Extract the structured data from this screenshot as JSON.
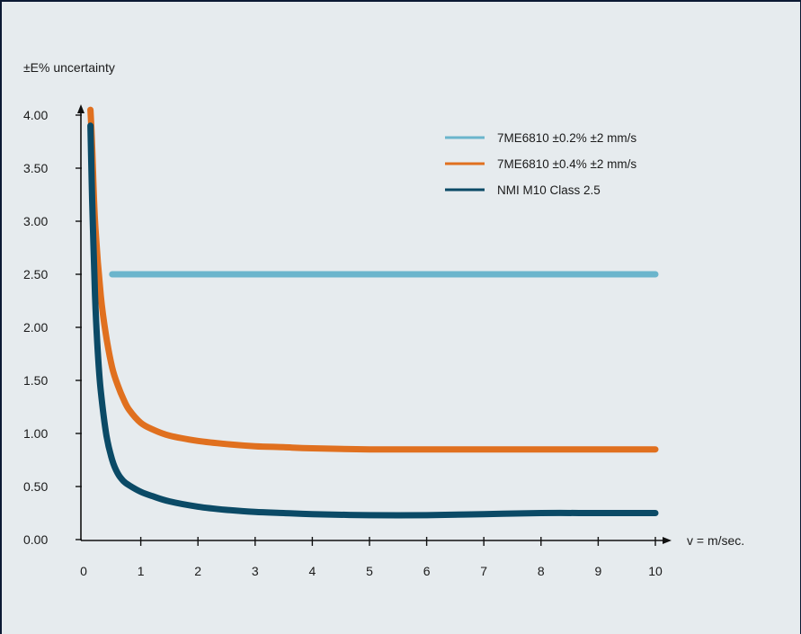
{
  "chart_data": {
    "type": "line",
    "title": "",
    "ylabel": "±E% uncertainty",
    "xlabel": "v = m/sec.",
    "xlim": [
      0,
      10
    ],
    "ylim": [
      0,
      4
    ],
    "x_ticks": [
      "0",
      "1",
      "2",
      "3",
      "4",
      "5",
      "6",
      "7",
      "8",
      "9",
      "10"
    ],
    "y_ticks": [
      "0.00",
      "0.50",
      "1.00",
      "1.50",
      "2.00",
      "2.50",
      "3.00",
      "3.50",
      "4.00"
    ],
    "grid": false,
    "legend_position": "top-right",
    "series": [
      {
        "name": "7ME6810 ±0.2% ±2 mm/s",
        "color": "#6bb5cc",
        "x": [
          0.5,
          10
        ],
        "y": [
          2.5,
          2.5
        ]
      },
      {
        "name": "7ME6810 ±0.4% ±2 mm/s",
        "color": "#e0701f",
        "x": [
          0.12,
          0.15,
          0.2,
          0.3,
          0.4,
          0.5,
          0.6,
          0.7,
          0.8,
          1.0,
          1.2,
          1.5,
          2,
          2.5,
          3,
          3.5,
          4,
          5,
          6,
          7,
          8,
          9,
          10
        ],
        "y": [
          4.05,
          3.7,
          3.0,
          2.3,
          1.9,
          1.62,
          1.45,
          1.32,
          1.22,
          1.1,
          1.04,
          0.98,
          0.93,
          0.9,
          0.88,
          0.87,
          0.86,
          0.85,
          0.85,
          0.85,
          0.85,
          0.85,
          0.85
        ]
      },
      {
        "name": "NMI M10 Class 2.5",
        "color": "#0b4a66",
        "x": [
          0.12,
          0.15,
          0.2,
          0.25,
          0.3,
          0.4,
          0.5,
          0.6,
          0.7,
          0.8,
          1.0,
          1.2,
          1.5,
          2,
          2.5,
          3,
          3.5,
          4,
          5,
          6,
          7,
          8,
          9,
          10
        ],
        "y": [
          3.9,
          3.2,
          2.3,
          1.75,
          1.4,
          0.98,
          0.75,
          0.62,
          0.55,
          0.51,
          0.45,
          0.41,
          0.36,
          0.31,
          0.28,
          0.26,
          0.25,
          0.24,
          0.23,
          0.23,
          0.24,
          0.25,
          0.25,
          0.25
        ]
      }
    ]
  }
}
